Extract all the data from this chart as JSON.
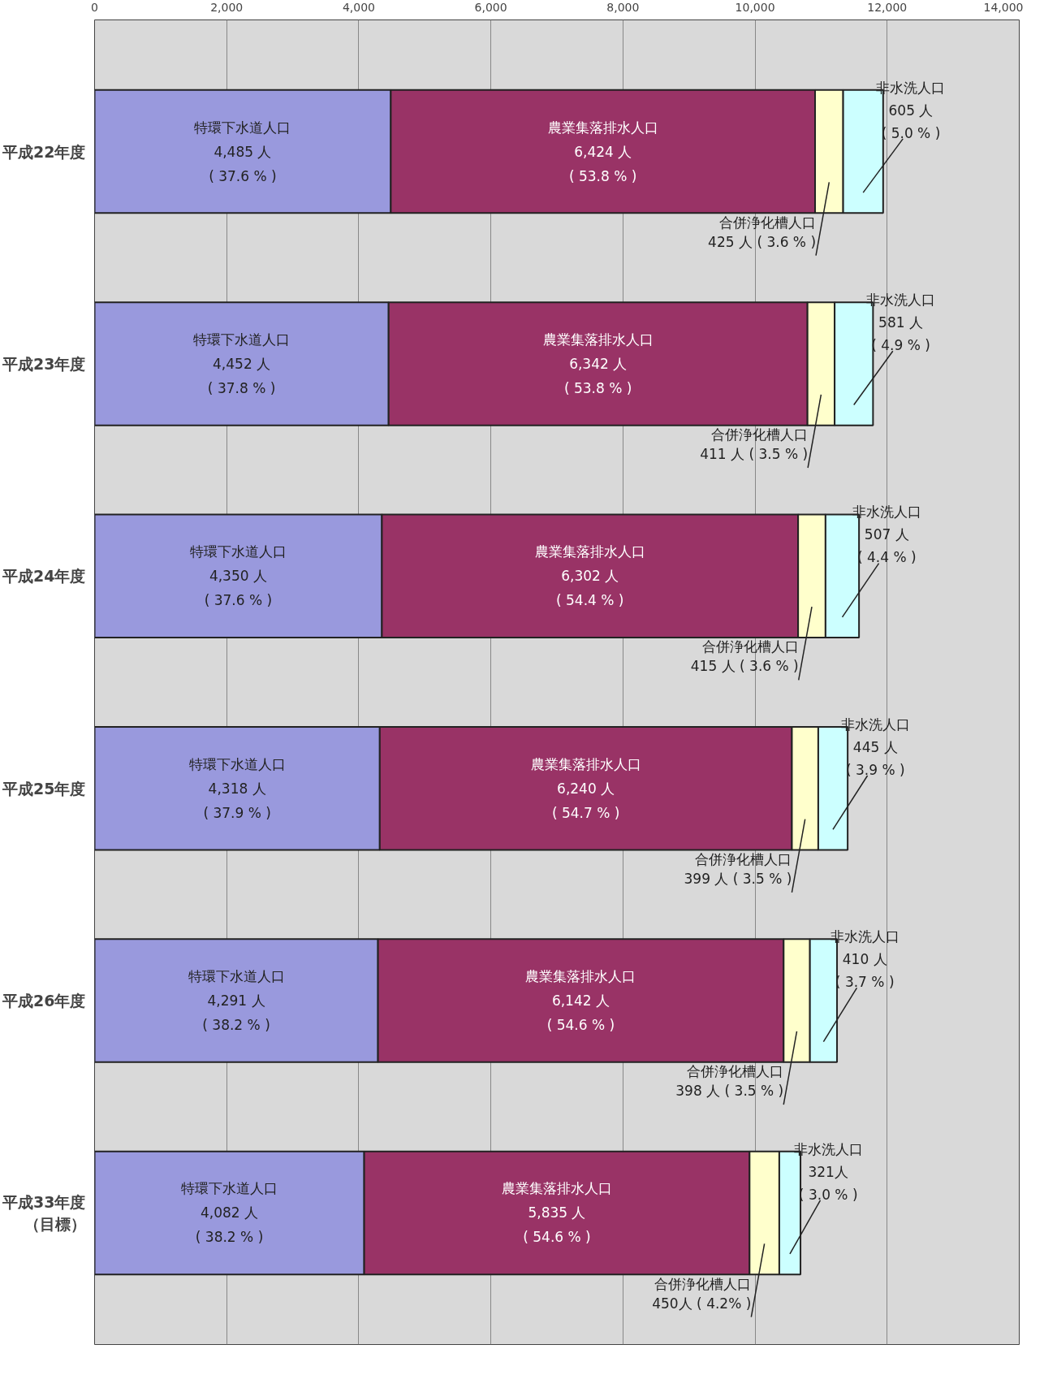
{
  "chart_data": {
    "type": "bar",
    "orientation": "horizontal",
    "stacked": true,
    "categories": [
      "平成22年度",
      "平成23年度",
      "平成24年度",
      "平成25年度",
      "平成26年度",
      "平成33年度（目標）"
    ],
    "series": [
      {
        "name": "特環下水道人口",
        "color": "#9999dd",
        "values": [
          4485,
          4452,
          4350,
          4318,
          4291,
          4082
        ],
        "value_labels": [
          "4,485 人\n( 37.6 % )",
          "4,452 人\n( 37.8 % )",
          "4,350 人\n( 37.6 % )",
          "4,318 人\n( 37.9 % )",
          "4,291 人\n( 38.2 % )",
          "4,082 人\n( 38.2 % )"
        ]
      },
      {
        "name": "農業集落排水人口",
        "color": "#993366",
        "values": [
          6424,
          6342,
          6302,
          6240,
          6142,
          5835
        ],
        "value_labels": [
          "6,424 人\n( 53.8 % )",
          "6,342 人\n( 53.8 % )",
          "6,302 人\n( 54.4 % )",
          "6,240 人\n( 54.7 % )",
          "6,142 人\n( 54.6 % )",
          "5,835 人\n( 54.6 % )"
        ]
      },
      {
        "name": "合併浄化槽人口",
        "color": "#ffffcc",
        "values": [
          425,
          411,
          415,
          399,
          398,
          450
        ],
        "value_labels": [
          "425 人 ( 3.6 % )",
          "411 人 ( 3.5 % )",
          "415 人 ( 3.6 % )",
          "399 人 ( 3.5 % )",
          "398 人 ( 3.5 % )",
          "450人 ( 4.2% )"
        ]
      },
      {
        "name": "非水洗人口",
        "color": "#ccffff",
        "values": [
          605,
          581,
          507,
          445,
          410,
          321
        ],
        "value_labels": [
          "605 人\n( 5.0 % )",
          "581 人\n( 4.9 % )",
          "507 人\n( 4.4 % )",
          "445 人\n( 3.9 % )",
          "410 人\n( 3.7 % )",
          "321人\n( 3.0 % )"
        ]
      }
    ],
    "xlim": [
      0,
      14000
    ],
    "xticks": [
      0,
      {
        "value": 2000,
        "label": "2,000"
      },
      {
        "value": 4000,
        "label": "4,000"
      },
      {
        "value": 6000,
        "label": "6,000"
      },
      {
        "value": 8000,
        "label": "8,000"
      },
      {
        "value": 10000,
        "label": "10,000"
      },
      {
        "value": 12000,
        "label": "12,000"
      },
      {
        "value": 14000,
        "label": "14,000"
      }
    ],
    "grid": "x",
    "legend": false
  }
}
